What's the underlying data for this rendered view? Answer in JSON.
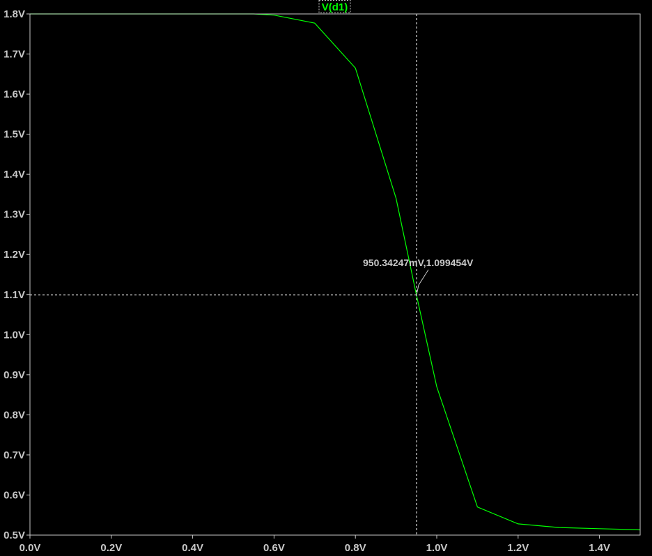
{
  "chart_data": {
    "type": "line",
    "title": "",
    "xlabel": "",
    "ylabel": "",
    "xlim": [
      0.0,
      1.5
    ],
    "ylim": [
      0.5,
      1.8
    ],
    "grid": false,
    "legend": "top-center",
    "x_ticks": [
      "0.0V",
      "0.2V",
      "0.4V",
      "0.6V",
      "0.8V",
      "1.0V",
      "1.2V",
      "1.4V"
    ],
    "x_tick_values": [
      0.0,
      0.2,
      0.4,
      0.6,
      0.8,
      1.0,
      1.2,
      1.4
    ],
    "y_ticks": [
      "1.8V",
      "1.7V",
      "1.6V",
      "1.5V",
      "1.4V",
      "1.3V",
      "1.2V",
      "1.1V",
      "1.0V",
      "0.9V",
      "0.8V",
      "0.7V",
      "0.6V",
      "0.5V"
    ],
    "y_tick_values": [
      1.8,
      1.7,
      1.6,
      1.5,
      1.4,
      1.3,
      1.2,
      1.1,
      1.0,
      0.9,
      0.8,
      0.7,
      0.6,
      0.5
    ],
    "series": [
      {
        "name": "V(d1)",
        "color": "#00ff00",
        "x": [
          0.0,
          0.55,
          0.6,
          0.7,
          0.8,
          0.9,
          0.95,
          1.0,
          1.1,
          1.2,
          1.3,
          1.4,
          1.5
        ],
        "y": [
          1.8,
          1.8,
          1.797,
          1.777,
          1.665,
          1.34,
          1.099,
          0.87,
          0.57,
          0.528,
          0.519,
          0.516,
          0.513
        ]
      }
    ],
    "cursor": {
      "x": 0.95034247,
      "y": 1.099454,
      "label": "950.34247mV,1.099454V"
    }
  },
  "colors": {
    "background": "#000000",
    "axis": "#c8c8c8",
    "trace": "#00ff00",
    "cursor": "#ffffff"
  }
}
